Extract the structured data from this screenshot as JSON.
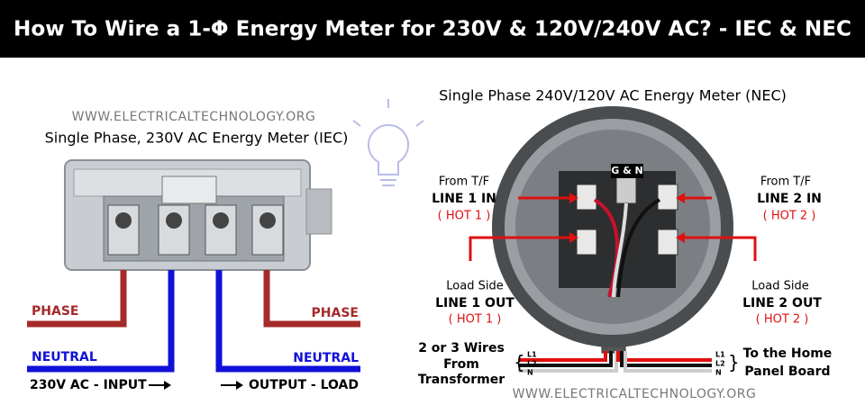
{
  "header": {
    "title": "How To Wire  a 1-Φ Energy Meter for 230V & 120V/240V AC? - IEC & NEC"
  },
  "iec": {
    "watermark": "WWW.ELECTRICALTECHNOLOGY.ORG",
    "subtitle": "Single Phase, 230V AC Energy Meter (IEC)",
    "phase_left": "PHASE",
    "phase_right": "PHASE",
    "neutral_left": "NEUTRAL",
    "neutral_right": "NEUTRAL",
    "input": "230V AC - INPUT",
    "output": "OUTPUT - LOAD"
  },
  "nec": {
    "subtitle": "Single Phase 240V/120V AC Energy Meter (NEC)",
    "ground_neutral": "G & N",
    "line1_in": {
      "source": "From T/F",
      "name": "LINE 1 IN",
      "hot": "( HOT 1 )"
    },
    "line2_in": {
      "source": "From T/F",
      "name": "LINE 2 IN",
      "hot": "( HOT 2 )"
    },
    "line1_out": {
      "source": "Load Side",
      "name": "LINE 1 OUT",
      "hot": "( HOT 1 )"
    },
    "line2_out": {
      "source": "Load Side",
      "name": "LINE 2 OUT",
      "hot": "( HOT 2 )"
    },
    "supply": {
      "lines": [
        "2 or 3 Wires",
        "From",
        "Transformer"
      ],
      "wires": [
        "L1",
        "L2",
        "N"
      ]
    },
    "panel": {
      "lines": [
        "To the Home",
        "Panel Board"
      ],
      "wires": [
        "L1",
        "L2",
        "N"
      ]
    },
    "watermark": "WWW.ELECTRICALTECHNOLOGY.ORG"
  }
}
